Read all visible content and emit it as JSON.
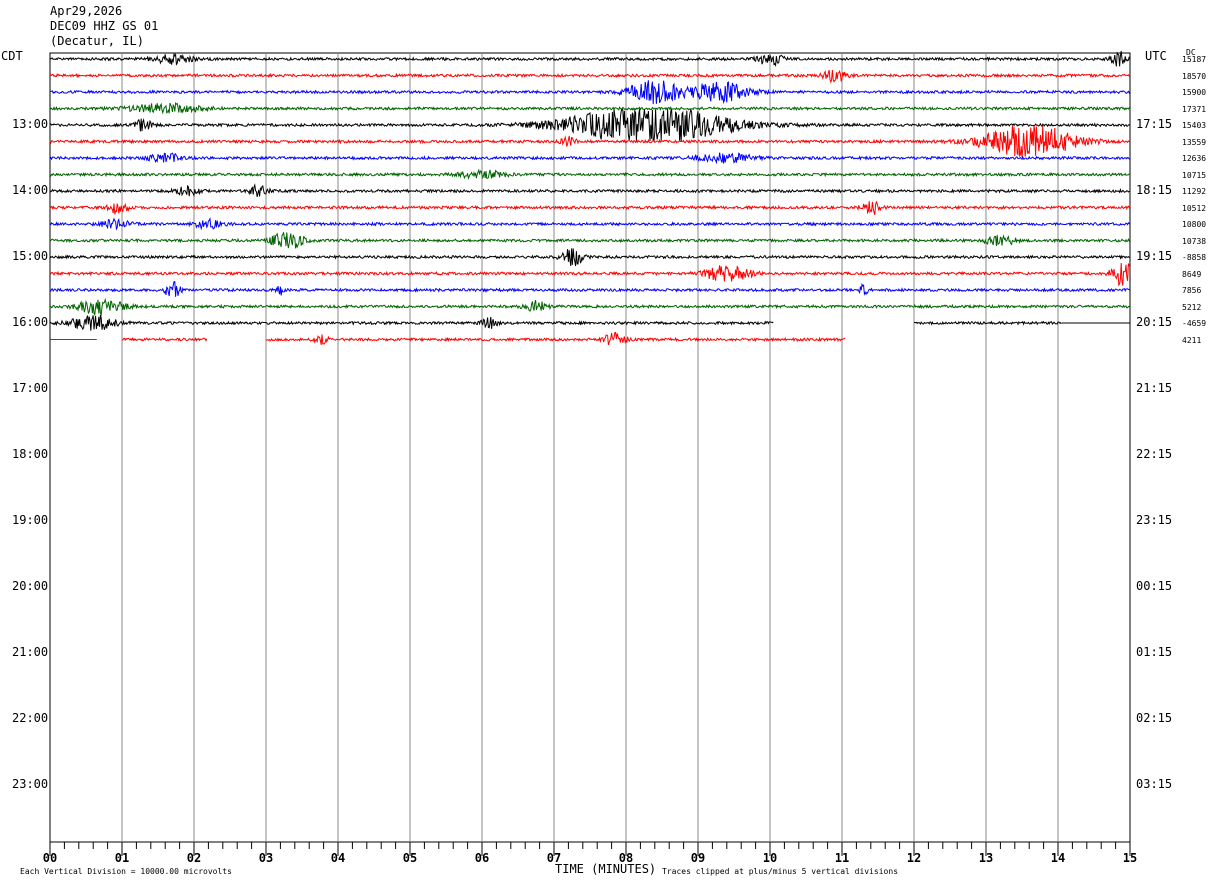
{
  "header": {
    "date": "Apr29,2026",
    "station": "DEC09 HHZ GS 01",
    "location": "(Decatur, IL)"
  },
  "labels": {
    "left_tz": "CDT",
    "right_tz": "UTC",
    "dc": "DC"
  },
  "footer": {
    "scale_note": "Each Vertical Division = 10000.00 microvolts",
    "xlabel": "TIME (MINUTES)",
    "clip_note": "Traces clipped at plus/minus 5 vertical divisions"
  },
  "chart_data": {
    "type": "line",
    "xlabel": "TIME (MINUTES)",
    "xlim": [
      0,
      15
    ],
    "x_ticks": [
      "00",
      "01",
      "02",
      "03",
      "04",
      "05",
      "06",
      "07",
      "08",
      "09",
      "10",
      "11",
      "12",
      "13",
      "14",
      "15"
    ],
    "hour_labels_left": [
      "13:00",
      "14:00",
      "15:00",
      "16:00",
      "17:00",
      "18:00",
      "19:00",
      "20:00",
      "21:00",
      "22:00",
      "23:00"
    ],
    "hour_labels_right": [
      "17:15",
      "18:15",
      "19:15",
      "20:15",
      "21:15",
      "22:15",
      "23:15",
      "00:15",
      "01:15",
      "02:15",
      "03:15"
    ],
    "grid": true,
    "trace_colors": [
      "#000000",
      "#ff0000",
      "#0000ff",
      "#006400"
    ],
    "traces": [
      {
        "dc": "15187",
        "bursts": [
          [
            1.7,
            0.25,
            1.4
          ],
          [
            10.0,
            0.15,
            2.2
          ],
          [
            14.85,
            0.12,
            2.2
          ]
        ]
      },
      {
        "dc": "18570",
        "bursts": [
          [
            10.9,
            0.15,
            2.0
          ]
        ]
      },
      {
        "dc": "15900",
        "bursts": [
          [
            8.4,
            0.35,
            3.5
          ],
          [
            9.3,
            0.4,
            3.2
          ]
        ]
      },
      {
        "dc": "17371",
        "bursts": [
          [
            1.6,
            0.5,
            1.4
          ]
        ]
      },
      {
        "dc": "15403",
        "bursts": [
          [
            8.3,
            1.1,
            6.0
          ],
          [
            1.3,
            0.1,
            2.0
          ]
        ]
      },
      {
        "dc": "13559",
        "bursts": [
          [
            13.6,
            0.6,
            5.5
          ],
          [
            7.2,
            0.1,
            1.4
          ]
        ]
      },
      {
        "dc": "12636",
        "bursts": [
          [
            1.6,
            0.2,
            1.6
          ],
          [
            9.4,
            0.4,
            1.4
          ]
        ]
      },
      {
        "dc": "10715",
        "bursts": [
          [
            6.0,
            0.3,
            1.3
          ]
        ]
      },
      {
        "dc": "11292",
        "bursts": [
          [
            1.9,
            0.15,
            1.6
          ],
          [
            2.9,
            0.12,
            1.8
          ]
        ]
      },
      {
        "dc": "10512",
        "bursts": [
          [
            0.95,
            0.12,
            2.2
          ],
          [
            11.4,
            0.12,
            2.4
          ]
        ]
      },
      {
        "dc": "10800",
        "bursts": [
          [
            0.9,
            0.2,
            1.4
          ],
          [
            2.2,
            0.2,
            1.3
          ]
        ]
      },
      {
        "dc": "10738",
        "bursts": [
          [
            3.3,
            0.2,
            3.0
          ],
          [
            13.2,
            0.2,
            1.5
          ]
        ]
      },
      {
        "dc": "-8858",
        "bursts": [
          [
            7.25,
            0.15,
            3.0
          ]
        ]
      },
      {
        "dc": "8649",
        "bursts": [
          [
            9.4,
            0.3,
            2.6
          ],
          [
            14.9,
            0.15,
            4.0
          ]
        ]
      },
      {
        "dc": "7856",
        "bursts": [
          [
            1.7,
            0.1,
            3.0
          ],
          [
            3.2,
            0.05,
            1.6
          ],
          [
            11.3,
            0.05,
            1.8
          ]
        ]
      },
      {
        "dc": "5212",
        "bursts": [
          [
            0.7,
            0.3,
            2.4
          ],
          [
            6.75,
            0.15,
            1.6
          ]
        ]
      },
      {
        "dc": "-4659",
        "bursts": [
          [
            0.6,
            0.3,
            2.4
          ],
          [
            6.1,
            0.1,
            1.6
          ]
        ],
        "segments": [
          [
            0,
            10.05
          ],
          [
            12.0,
            14.05
          ]
        ],
        "flat": [
          [
            14.05,
            15
          ]
        ]
      },
      {
        "dc": "4211",
        "bursts": [
          [
            7.85,
            0.15,
            2.0
          ],
          [
            3.75,
            0.1,
            1.4
          ]
        ],
        "segments": [
          [
            1.0,
            2.18
          ],
          [
            3.0,
            11.05
          ]
        ],
        "flat": [
          [
            0,
            0.65
          ]
        ]
      }
    ]
  }
}
